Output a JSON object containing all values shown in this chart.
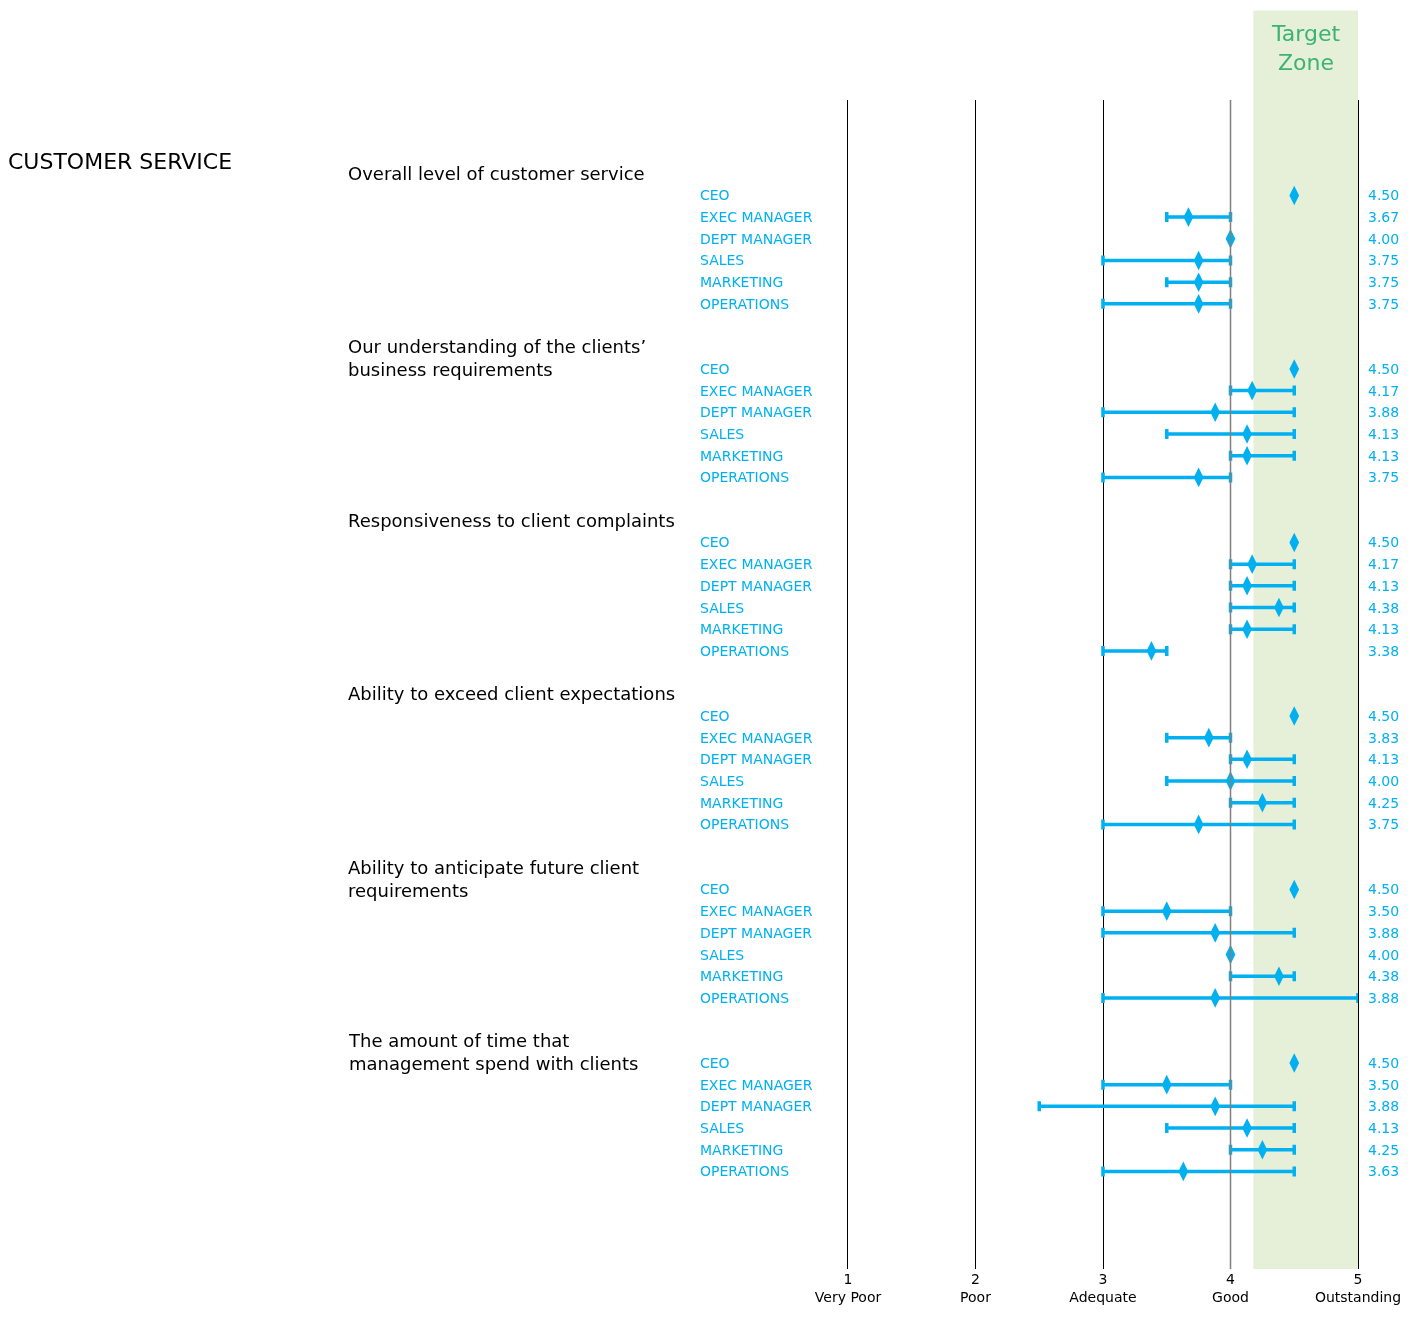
{
  "chart_data": {
    "type": "scatter",
    "orientation": "horizontal",
    "title": "CUSTOMER SERVICE",
    "categories": [
      null,
      "CEO",
      "EXEC MANAGER",
      "DEPT MANAGER",
      "SALES",
      "MARKETING",
      "OPERATIONS",
      null,
      null,
      "CEO",
      "EXEC MANAGER",
      "DEPT MANAGER",
      "SALES",
      "MARKETING",
      "OPERATIONS",
      null,
      null,
      "CEO",
      "EXEC MANAGER",
      "DEPT MANAGER",
      "SALES",
      "MARKETING",
      "OPERATIONS",
      null,
      null,
      "CEO",
      "EXEC MANAGER",
      "DEPT MANAGER",
      "SALES",
      "MARKETING",
      "OPERATIONS",
      null,
      null,
      "CEO",
      "EXEC MANAGER",
      "DEPT MANAGER",
      "SALES",
      "MARKETING",
      "OPERATIONS",
      null,
      null,
      "CEO",
      "EXEC MANAGER",
      "DEPT MANAGER",
      "SALES",
      "MARKETING",
      "OPERATIONS",
      null
    ],
    "series": [
      {
        "color": "#00b0f0",
        "values": [
          null,
          4.5,
          3.67,
          4.0,
          3.75,
          3.75,
          3.75,
          null,
          null,
          4.5,
          4.17,
          3.88,
          4.13,
          4.13,
          3.75,
          null,
          null,
          4.5,
          4.17,
          4.13,
          4.38,
          4.13,
          3.38,
          null,
          null,
          4.5,
          3.83,
          4.13,
          4.0,
          4.25,
          3.75,
          null,
          null,
          4.5,
          3.5,
          3.88,
          4.0,
          4.38,
          3.88,
          null,
          null,
          4.5,
          3.5,
          3.88,
          4.13,
          4.25,
          3.63,
          null
        ],
        "value_labels": [
          null,
          "4.50",
          "3.67",
          "4.00",
          "3.75",
          "3.75",
          "3.75",
          null,
          null,
          "4.50",
          "4.17",
          "3.88",
          "4.13",
          "4.13",
          "3.75",
          null,
          null,
          "4.50",
          "4.17",
          "4.13",
          "4.38",
          "4.13",
          "3.38",
          null,
          null,
          "4.50",
          "3.83",
          "4.13",
          "4.00",
          "4.25",
          "3.75",
          null,
          null,
          "4.50",
          "3.50",
          "3.88",
          "4.00",
          "4.38",
          "3.88",
          null,
          null,
          "4.50",
          "3.50",
          "3.88",
          "4.13",
          "4.25",
          "3.63",
          null
        ],
        "errors": [
          null,
          null,
          [
            3.5,
            4
          ],
          null,
          [
            3,
            4
          ],
          [
            3.5,
            4
          ],
          [
            3,
            4
          ],
          null,
          null,
          null,
          [
            4,
            4.5
          ],
          [
            3,
            4.5
          ],
          [
            3.5,
            4.5
          ],
          [
            4,
            4.5
          ],
          [
            3,
            4
          ],
          null,
          null,
          null,
          [
            4,
            4.5
          ],
          [
            4,
            4.5
          ],
          [
            4,
            4.5
          ],
          [
            4,
            4.5
          ],
          [
            3,
            3.5
          ],
          null,
          null,
          null,
          [
            3.5,
            4
          ],
          [
            4,
            4.5
          ],
          [
            3.5,
            4.5
          ],
          [
            4,
            4.5
          ],
          [
            3,
            4.5
          ],
          null,
          null,
          null,
          [
            3,
            4
          ],
          [
            3,
            4.5
          ],
          null,
          [
            4,
            4.5
          ],
          [
            3,
            5
          ],
          null,
          null,
          null,
          [
            3,
            4
          ],
          [
            2.5,
            4.5
          ],
          [
            3.5,
            4.5
          ],
          [
            4,
            4.5
          ],
          [
            3,
            4.5
          ],
          null
        ]
      }
    ],
    "annotations": [
      "Overall level of customer service",
      "Our understanding of the clients’\nbusiness requirements",
      "Responsiveness to client complaints",
      "Ability to exceed client expectations",
      "Ability to anticipate future client\nrequirements",
      "The amount of time that\nmanagement spend with clients"
    ],
    "xlim": [
      1,
      5
    ],
    "xticks": [
      {
        "value": 1,
        "label": "1\nVery Poor"
      },
      {
        "value": 2,
        "label": "2\nPoor"
      },
      {
        "value": 3,
        "label": "3\nAdequate"
      },
      {
        "value": 4,
        "label": "4\nGood"
      },
      {
        "value": 5,
        "label": "5\nOutstanding"
      }
    ],
    "bands": [
      {
        "axis": "x",
        "from": 4.18,
        "to": 5,
        "label": "Target Zone",
        "color": "#e6efd8"
      }
    ],
    "ref_lines": [
      {
        "axis": "x",
        "value": 4,
        "color": "#808080"
      }
    ],
    "grid": "x",
    "marker": "diamond"
  }
}
